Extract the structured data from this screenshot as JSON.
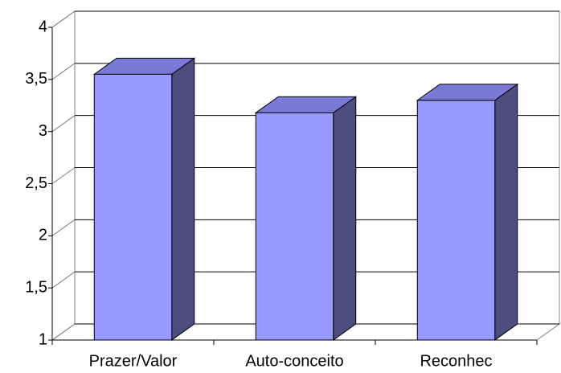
{
  "chart_data": {
    "type": "bar3d",
    "categories": [
      "Prazer/Valor",
      "Auto-conceito",
      "Reconhec"
    ],
    "values": [
      3.55,
      3.18,
      3.3
    ],
    "color": "#9999ff",
    "side_color": "#4d4d80",
    "top_color": "#7a7ad6",
    "ylim": [
      1,
      4
    ],
    "yticks": [
      1,
      {
        "value": 1.5,
        "label": "1,5"
      },
      2,
      {
        "value": 2.5,
        "label": "2,5"
      },
      3,
      {
        "value": 3.5,
        "label": "3,5"
      },
      4
    ],
    "grid": true
  }
}
